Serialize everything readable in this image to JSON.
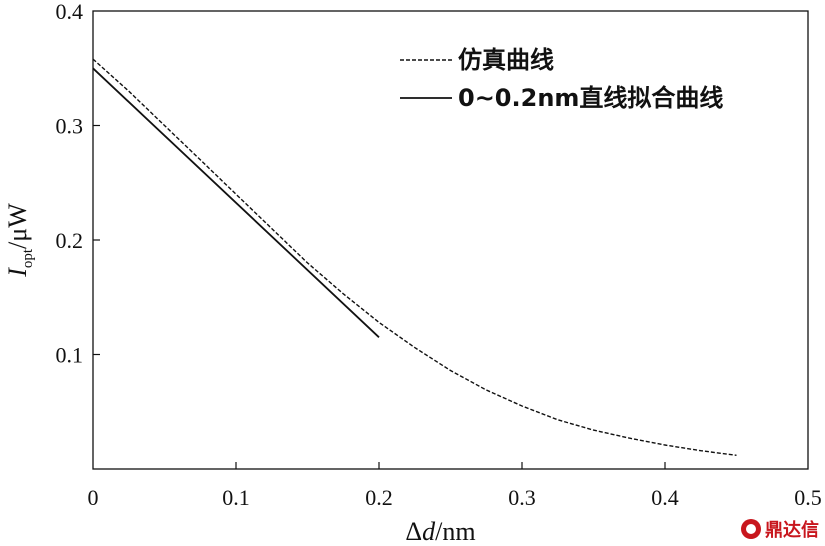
{
  "chart_data": {
    "type": "line",
    "xlabel_prefix": "Δ",
    "xlabel_var": "d",
    "xlabel_unit": "/nm",
    "ylabel_var": "I",
    "ylabel_sub": "opt",
    "ylabel_unit": "/μW",
    "xlim": [
      0,
      0.5
    ],
    "ylim": [
      0,
      0.4
    ],
    "xticks": [
      "0",
      "0.1",
      "0.2",
      "0.3",
      "0.4",
      "0.5"
    ],
    "xtick_values": [
      0,
      0.1,
      0.2,
      0.3,
      0.4,
      0.5
    ],
    "yticks": [
      "0.1",
      "0.2",
      "0.3",
      "0.4"
    ],
    "ytick_values": [
      0.1,
      0.2,
      0.3,
      0.4
    ],
    "legend_position": "top-right",
    "series": [
      {
        "name": "仿真曲线",
        "style": "dashed",
        "x": [
          0.0,
          0.025,
          0.05,
          0.075,
          0.1,
          0.125,
          0.15,
          0.175,
          0.2,
          0.225,
          0.25,
          0.275,
          0.3,
          0.325,
          0.35,
          0.375,
          0.4,
          0.425,
          0.45
        ],
        "y": [
          0.358,
          0.33,
          0.3,
          0.27,
          0.24,
          0.21,
          0.18,
          0.153,
          0.128,
          0.106,
          0.086,
          0.069,
          0.055,
          0.043,
          0.034,
          0.027,
          0.021,
          0.016,
          0.012
        ]
      },
      {
        "name": "0~0.2nm直线拟合曲线",
        "style": "solid",
        "x": [
          0.0,
          0.2
        ],
        "y": [
          0.35,
          0.115
        ]
      }
    ]
  },
  "watermark": {
    "text": "鼎达信",
    "color": "#c8161d"
  }
}
